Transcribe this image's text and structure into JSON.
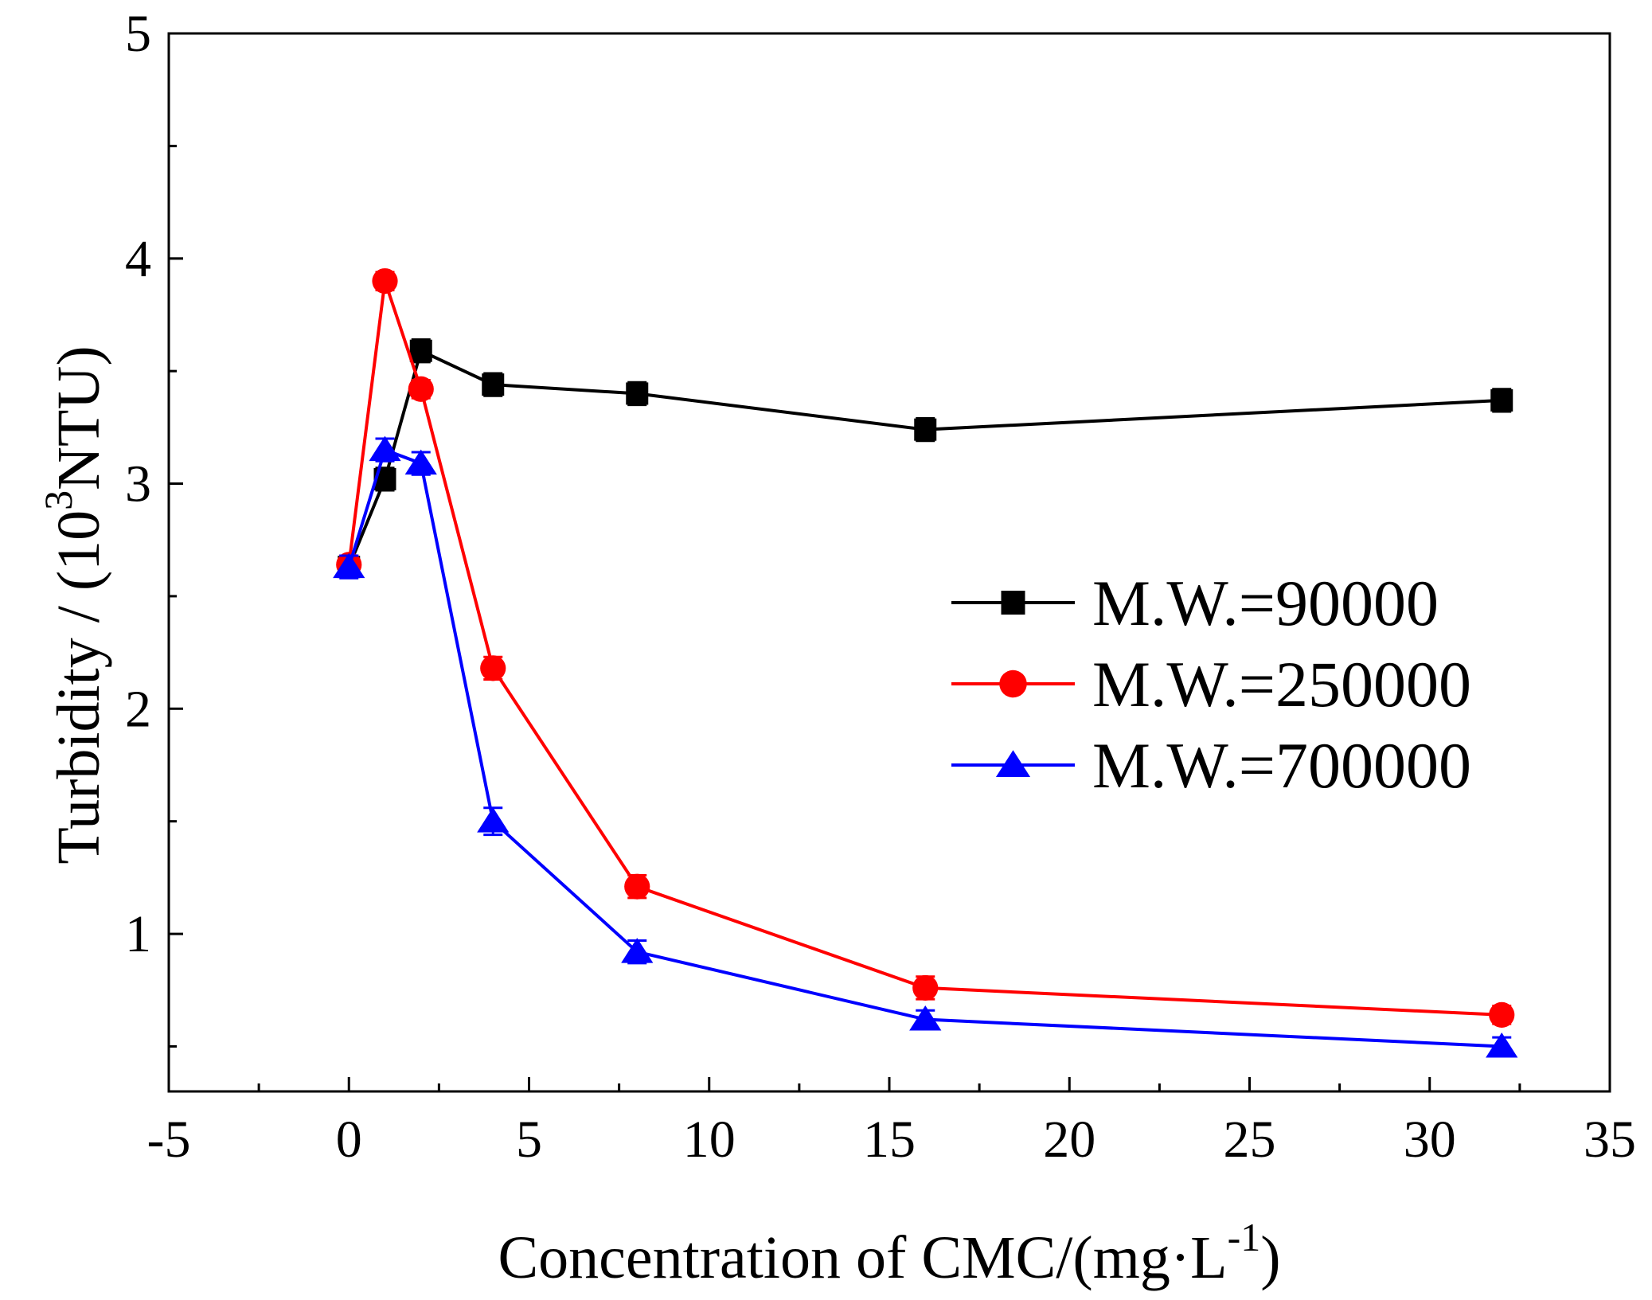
{
  "chart_data": {
    "type": "line",
    "xlabel": {
      "text": "Concentration of CMC/(mg·L",
      "sup": "-1",
      "close": ")"
    },
    "ylabel": {
      "text": "Turbidity / (10",
      "sup": "3",
      "close": "NTU)"
    },
    "xlim": [
      -5,
      35
    ],
    "ylim": [
      0.3,
      5
    ],
    "xticks": [
      -5,
      0,
      5,
      10,
      15,
      20,
      25,
      30,
      35
    ],
    "yticks": [
      1,
      2,
      3,
      4,
      5
    ],
    "x_tick_labels": [
      "-5",
      "0",
      "5",
      "10",
      "15",
      "20",
      "25",
      "30",
      "35"
    ],
    "y_tick_labels": [
      "1",
      "2",
      "3",
      "4",
      "5"
    ],
    "legend_position": "center-right",
    "series": [
      {
        "name": "M.W.=90000",
        "color": "#000000",
        "marker": "square",
        "x": [
          0,
          1,
          2,
          4,
          8,
          16,
          32
        ],
        "y": [
          2.63,
          3.02,
          3.59,
          3.44,
          3.4,
          3.24,
          3.37
        ],
        "err": [
          0.04,
          0.05,
          0.05,
          0.05,
          0.05,
          0.05,
          0.05
        ]
      },
      {
        "name": "M.W.=250000",
        "color": "#ff0000",
        "marker": "circle",
        "x": [
          0,
          1,
          2,
          4,
          8,
          16,
          32
        ],
        "y": [
          2.64,
          3.9,
          3.42,
          2.18,
          1.21,
          0.76,
          0.64
        ],
        "err": [
          0.04,
          0.04,
          0.04,
          0.05,
          0.05,
          0.05,
          0.04
        ]
      },
      {
        "name": "M.W.=700000",
        "color": "#0000ff",
        "marker": "triangle",
        "x": [
          0,
          1,
          2,
          4,
          8,
          16,
          32
        ],
        "y": [
          2.63,
          3.15,
          3.09,
          1.5,
          0.92,
          0.62,
          0.5
        ],
        "err": [
          0.05,
          0.05,
          0.05,
          0.06,
          0.05,
          0.04,
          0.04
        ]
      }
    ]
  }
}
